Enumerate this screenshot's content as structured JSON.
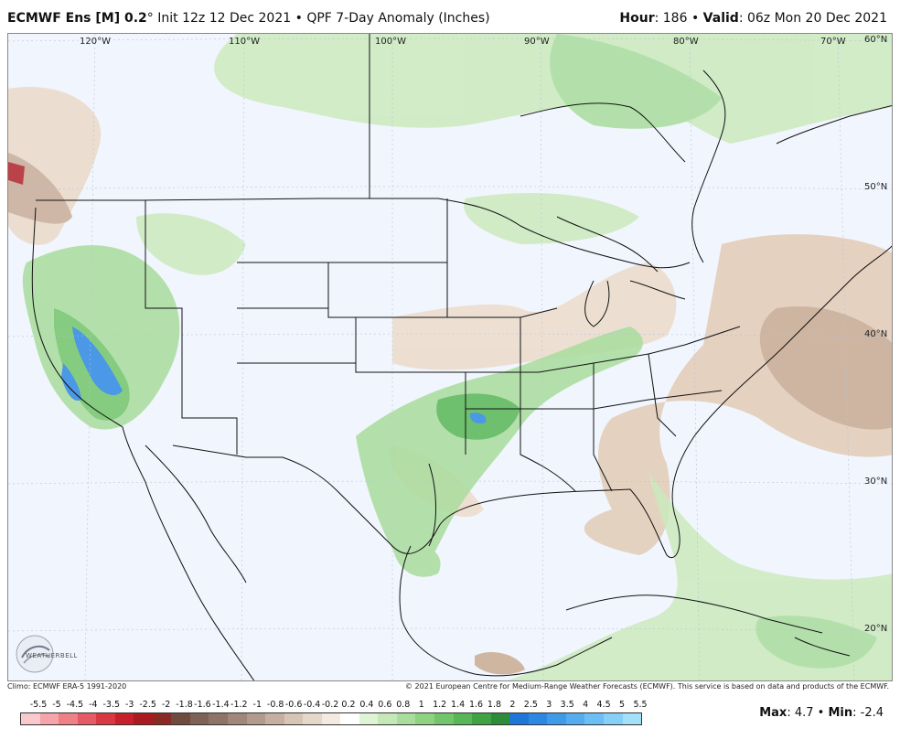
{
  "header": {
    "model": "ECMWF Ens [M] 0.2",
    "degree": "°",
    "run": "Init 12z 12 Dec 2021",
    "separator": "•",
    "product": "QPF 7-Day Anomaly (Inches)",
    "hour_label": "Hour",
    "hour_value": ": 186",
    "valid_label": "Valid",
    "valid_value": ": 06z Mon 20 Dec 2021"
  },
  "lon_labels": [
    "120°W",
    "110°W",
    "100°W",
    "90°W",
    "80°W",
    "70°W"
  ],
  "lat_labels": [
    "60°N",
    "50°N",
    "40°N",
    "30°N",
    "20°N"
  ],
  "logo": {
    "text": "WEATHERBELL"
  },
  "footer": {
    "climo": "Climo: ECMWF ERA-5 1991-2020",
    "copyright": "© 2021 European Centre for Medium-Range Weather Forecasts (ECMWF). This service is based on data and products of the ECMWF."
  },
  "colorbar": {
    "ticks": [
      "-5.5",
      "-5",
      "-4.5",
      "-4",
      "-3.5",
      "-3",
      "-2.5",
      "-2",
      "-1.8",
      "-1.6",
      "-1.4",
      "-1.2",
      "-1",
      "-0.8",
      "-0.6",
      "-0.4",
      "-0.2",
      "0.2",
      "0.4",
      "0.6",
      "0.8",
      "1",
      "1.2",
      "1.4",
      "1.6",
      "1.8",
      "2",
      "2.5",
      "3",
      "3.5",
      "4",
      "4.5",
      "5",
      "5.5"
    ],
    "colors": [
      "#f9c9cc",
      "#f4a4aa",
      "#ee8088",
      "#e55a65",
      "#d93843",
      "#c8202a",
      "#ab1a20",
      "#8a2a25",
      "#6e4a3f",
      "#7d6255",
      "#8e7466",
      "#a08779",
      "#b29b8d",
      "#c4afa1",
      "#d6c4b5",
      "#e6d8c9",
      "#f3ebe2",
      "#ffffff",
      "#dff3d6",
      "#c4e8b8",
      "#a9dd9c",
      "#8ed282",
      "#73c56b",
      "#58b656",
      "#3fa346",
      "#2c8c3a",
      "#1e76d8",
      "#2d88e3",
      "#3f9aea",
      "#55adf0",
      "#6cbff4",
      "#86d0f7",
      "#a3e0fa"
    ]
  },
  "stats": {
    "max_label": "Max",
    "max_value": ": 4.7",
    "bullet": "•",
    "min_label": "Min",
    "min_value": ": -2.4"
  }
}
